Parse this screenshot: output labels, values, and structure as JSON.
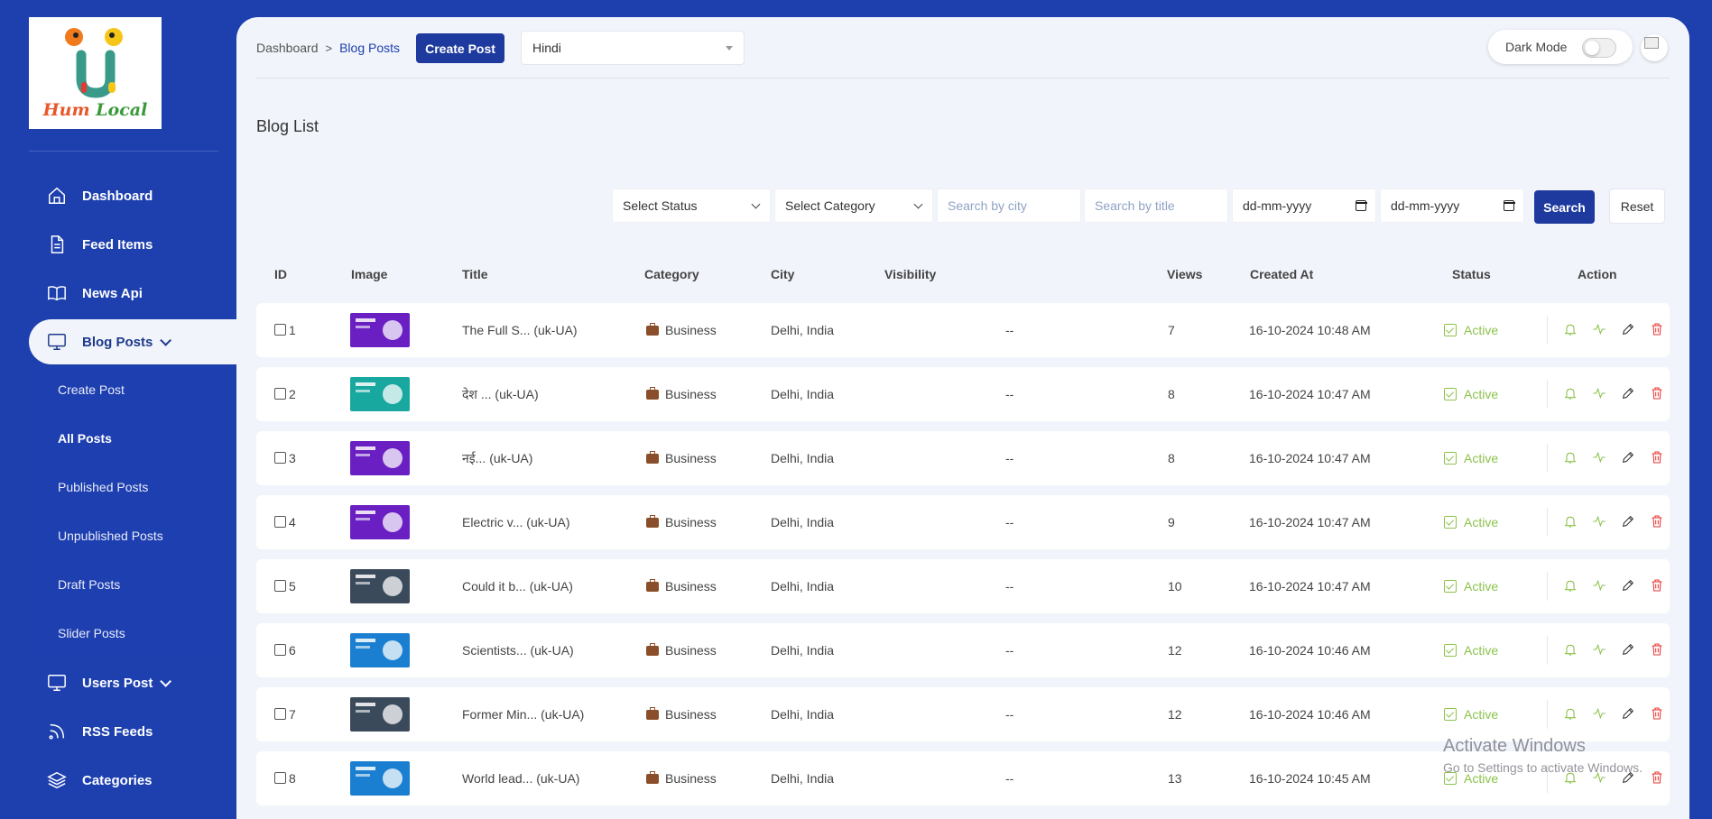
{
  "brand": {
    "logo_word1": "Hum",
    "logo_word2": "Local"
  },
  "sidebar": {
    "items": [
      {
        "label": "Dashboard",
        "icon": "home-icon"
      },
      {
        "label": "Feed Items",
        "icon": "document-icon"
      },
      {
        "label": "News Api",
        "icon": "book-icon"
      },
      {
        "label": "Blog Posts",
        "icon": "monitor-icon",
        "active": true,
        "expanded": true
      },
      {
        "label": "Users Post",
        "icon": "monitor-icon"
      },
      {
        "label": "RSS Feeds",
        "icon": "rss-icon"
      },
      {
        "label": "Categories",
        "icon": "layers-icon"
      }
    ],
    "blog_submenu": [
      {
        "label": "Create Post"
      },
      {
        "label": "All Posts",
        "active": true
      },
      {
        "label": "Published Posts"
      },
      {
        "label": "Unpublished Posts"
      },
      {
        "label": "Draft Posts"
      },
      {
        "label": "Slider Posts"
      }
    ]
  },
  "header": {
    "breadcrumb": {
      "home": "Dashboard",
      "separator": ">",
      "current": "Blog Posts"
    },
    "create_label": "Create Post",
    "language": "Hindi",
    "dark_mode_label": "Dark Mode"
  },
  "page": {
    "title": "Blog List"
  },
  "filters": {
    "status": "Select Status",
    "category": "Select Category",
    "city_placeholder": "Search by city",
    "title_placeholder": "Search by title",
    "date_from": "dd-mm-yyyy",
    "date_to": "dd-mm-yyyy",
    "search_label": "Search",
    "reset_label": "Reset"
  },
  "table": {
    "columns": [
      "ID",
      "Image",
      "Title",
      "Category",
      "City",
      "Visibility",
      "Views",
      "Created At",
      "Status",
      "Action"
    ],
    "rows": [
      {
        "id": "1",
        "title": "The Full S... (uk-UA)",
        "category": "Business",
        "city": "Delhi, India",
        "visibility": "--",
        "views": "7",
        "created": "16-10-2024 10:48 AM",
        "status": "Active",
        "thumb_color": "#6a1fc2"
      },
      {
        "id": "2",
        "title": "देश ... (uk-UA)",
        "category": "Business",
        "city": "Delhi, India",
        "visibility": "--",
        "views": "8",
        "created": "16-10-2024 10:47 AM",
        "status": "Active",
        "thumb_color": "#19a8a0"
      },
      {
        "id": "3",
        "title": "नई... (uk-UA)",
        "category": "Business",
        "city": "Delhi, India",
        "visibility": "--",
        "views": "8",
        "created": "16-10-2024 10:47 AM",
        "status": "Active",
        "thumb_color": "#6a1fc2"
      },
      {
        "id": "4",
        "title": "Electric v... (uk-UA)",
        "category": "Business",
        "city": "Delhi, India",
        "visibility": "--",
        "views": "9",
        "created": "16-10-2024 10:47 AM",
        "status": "Active",
        "thumb_color": "#6a1fc2"
      },
      {
        "id": "5",
        "title": "Could it b... (uk-UA)",
        "category": "Business",
        "city": "Delhi, India",
        "visibility": "--",
        "views": "10",
        "created": "16-10-2024 10:47 AM",
        "status": "Active",
        "thumb_color": "#3a4a5a"
      },
      {
        "id": "6",
        "title": "Scientists... (uk-UA)",
        "category": "Business",
        "city": "Delhi, India",
        "visibility": "--",
        "views": "12",
        "created": "16-10-2024 10:46 AM",
        "status": "Active",
        "thumb_color": "#1a7fd0"
      },
      {
        "id": "7",
        "title": "Former Min... (uk-UA)",
        "category": "Business",
        "city": "Delhi, India",
        "visibility": "--",
        "views": "12",
        "created": "16-10-2024 10:46 AM",
        "status": "Active",
        "thumb_color": "#3a4a5a"
      },
      {
        "id": "8",
        "title": "World lead... (uk-UA)",
        "category": "Business",
        "city": "Delhi, India",
        "visibility": "--",
        "views": "13",
        "created": "16-10-2024 10:45 AM",
        "status": "Active",
        "thumb_color": "#1a7fd0"
      }
    ]
  },
  "colors": {
    "primary": "#1e40af",
    "active_status": "#8bc34a",
    "edit_icon": "#333333",
    "delete_icon": "#e53935",
    "notify_icon": "#8bc34a"
  },
  "watermark": {
    "line1": "Activate Windows",
    "line2": "Go to Settings to activate Windows."
  }
}
